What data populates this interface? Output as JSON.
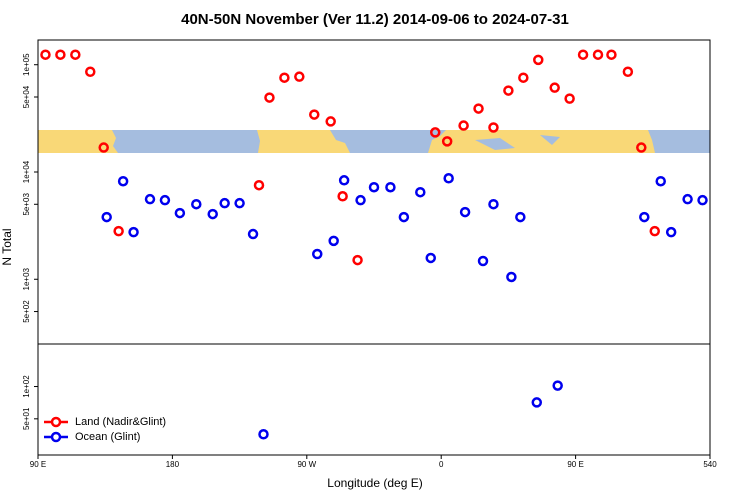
{
  "chart_data": {
    "type": "scatter",
    "title": "40N-50N November (Ver 11.2)   2014-09-06 to 2024-07-31",
    "x_label": "Longitude (deg E)",
    "y_label": "N Total",
    "log_y": true,
    "legend": "bottom left",
    "xlim": [
      90,
      540
    ],
    "xticks": [
      {
        "value": 90,
        "label": "90 E"
      },
      180,
      {
        "value": 270,
        "label": "90 W"
      },
      {
        "value": 360,
        "label": "0"
      },
      {
        "value": 450,
        "label": "90 E"
      },
      540
    ],
    "ylim": [
      23,
      170000
    ],
    "yticks": [
      {
        "value": 100000,
        "label": "1e+05"
      },
      {
        "value": 50000,
        "label": "5e+04"
      },
      {
        "value": 10000,
        "label": "1e+04"
      },
      {
        "value": 5000,
        "label": "5e+03"
      },
      {
        "value": 1000,
        "label": "1e+03"
      },
      {
        "value": 500,
        "label": "5e+02"
      },
      {
        "value": 100,
        "label": "1e+02"
      },
      {
        "value": 50,
        "label": "5e+01"
      }
    ],
    "series": [
      {
        "name": "Land (Nadir&Glint)",
        "color": "#ff0000",
        "x": [
          95,
          105,
          115,
          125,
          134,
          144,
          238,
          245,
          255,
          265,
          275,
          286,
          294,
          304,
          356,
          364,
          375,
          385,
          395,
          405,
          415,
          425,
          436,
          446,
          455,
          465,
          474,
          485,
          494,
          503
        ],
        "values": [
          124000,
          124000,
          124000,
          86000,
          16900,
          2810,
          7530,
          49400,
          75700,
          77400,
          34300,
          29600,
          5940,
          1510,
          23400,
          19300,
          27100,
          39000,
          26000,
          57400,
          75700,
          111000,
          61100,
          48300,
          124000,
          124000,
          124000,
          86000,
          16900,
          2810
        ]
      },
      {
        "name": "Ocean (Glint)",
        "color": "#0000ee",
        "x": [
          136,
          147,
          154,
          165,
          175,
          185,
          196,
          207,
          215,
          225,
          234,
          241,
          277,
          288,
          295,
          306,
          315,
          326,
          335,
          346,
          353,
          365,
          376,
          388,
          395,
          407,
          413,
          424,
          438,
          496,
          507,
          514,
          525,
          535
        ],
        "values": [
          3800,
          8200,
          2750,
          5580,
          5460,
          4140,
          5010,
          4050,
          5120,
          5120,
          2640,
          35.9,
          1720,
          2280,
          8370,
          5460,
          7210,
          7210,
          3800,
          6480,
          1580,
          8740,
          4230,
          1480,
          5010,
          1050,
          3800,
          71.1,
          102,
          3800,
          8200,
          2750,
          5580,
          5460
        ]
      }
    ]
  }
}
